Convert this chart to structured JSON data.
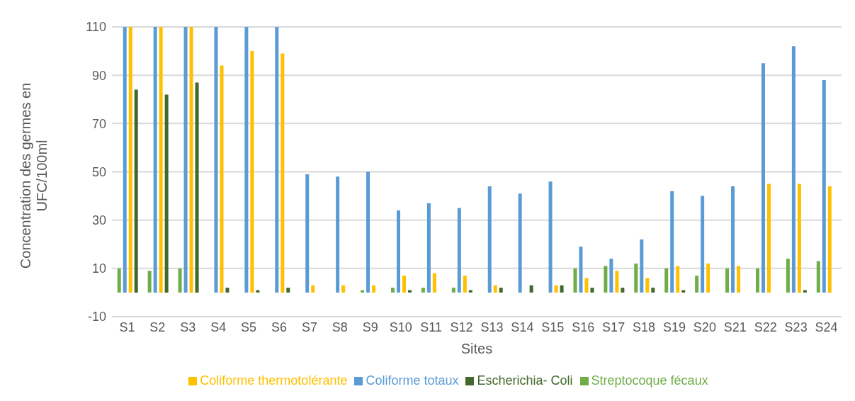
{
  "chart_data": {
    "type": "bar",
    "xlabel": "Sites",
    "ylabel": "Concentration des germes en UFC/100ml",
    "categories": [
      "S1",
      "S2",
      "S3",
      "S4",
      "S5",
      "S6",
      "S7",
      "S8",
      "S9",
      "S10",
      "S11",
      "S12",
      "S13",
      "S14",
      "S15",
      "S16",
      "S17",
      "S18",
      "S19",
      "S20",
      "S21",
      "S22",
      "S23",
      "S24"
    ],
    "series": [
      {
        "name": "Streptocoque fécaux",
        "color": "#70ad47",
        "values": [
          10,
          9,
          10,
          0,
          0,
          0,
          0,
          0,
          1,
          2,
          2,
          2,
          0,
          0,
          0,
          10,
          11,
          12,
          10,
          7,
          10,
          10,
          14,
          13
        ]
      },
      {
        "name": "Coliforme totaux",
        "color": "#5b9bd5",
        "values": [
          110,
          110,
          110,
          110,
          110,
          110,
          49,
          48,
          50,
          34,
          37,
          35,
          44,
          41,
          46,
          19,
          14,
          22,
          42,
          40,
          44,
          95,
          102,
          88
        ]
      },
      {
        "name": "Coliforme thermotolérante",
        "color": "#ffc000",
        "values": [
          110,
          110,
          110,
          94,
          100,
          99,
          3,
          3,
          3,
          7,
          8,
          7,
          3,
          0,
          3,
          6,
          9,
          6,
          11,
          12,
          11,
          45,
          45,
          44
        ]
      },
      {
        "name": "Escherichia- Coli",
        "color": "#43682b",
        "values": [
          84,
          82,
          87,
          2,
          1,
          2,
          0,
          0,
          0,
          1,
          0,
          1,
          2,
          3,
          3,
          2,
          2,
          2,
          1,
          0,
          0,
          0,
          1,
          0
        ]
      }
    ],
    "ylim": [
      -10,
      110
    ],
    "yticks": [
      -10,
      10,
      30,
      50,
      70,
      90,
      110
    ],
    "grid": "y",
    "legend": "bottom"
  }
}
